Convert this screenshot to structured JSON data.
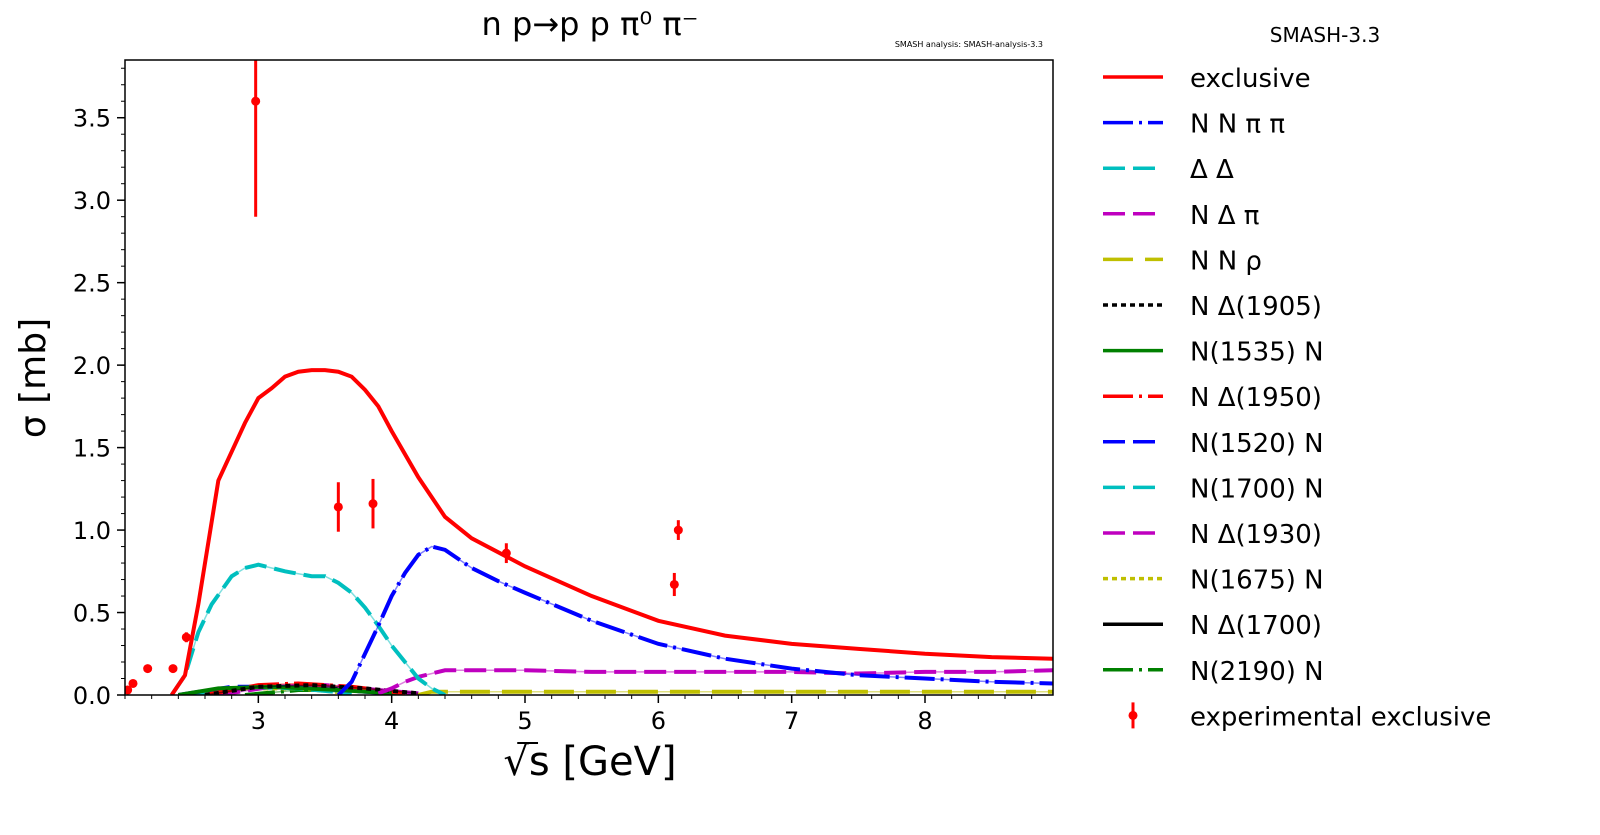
{
  "chart_data": {
    "type": "line",
    "title": "n p→p p π⁰ π⁻",
    "watermark": "SMASH analysis: SMASH-analysis-3.3",
    "legend_title": "SMASH-3.3",
    "legend_placement": "outside-right",
    "xlabel": "√s [GeV]",
    "xlabel_root": "√",
    "xlabel_s": "s",
    "xlabel_unit": "[GeV]",
    "ylabel": "σ [mb]",
    "xlim": [
      2.0,
      8.96
    ],
    "ylim": [
      0,
      3.85
    ],
    "xticks": [
      3,
      4,
      5,
      6,
      7,
      8
    ],
    "yticks": [
      "0.0",
      "0.5",
      "1.0",
      "1.5",
      "2.0",
      "2.5",
      "3.0",
      "3.5"
    ],
    "series": [
      {
        "name": "exclusive",
        "color": "#ff0000",
        "dash": "",
        "x": [
          2.35,
          2.45,
          2.55,
          2.7,
          2.9,
          3.0,
          3.1,
          3.2,
          3.3,
          3.4,
          3.5,
          3.6,
          3.7,
          3.8,
          3.9,
          4.0,
          4.2,
          4.4,
          4.6,
          5.0,
          5.5,
          6.0,
          6.5,
          7.0,
          7.5,
          8.0,
          8.5,
          8.96
        ],
        "y": [
          0,
          0.12,
          0.55,
          1.3,
          1.65,
          1.8,
          1.86,
          1.93,
          1.96,
          1.97,
          1.97,
          1.96,
          1.93,
          1.85,
          1.75,
          1.6,
          1.32,
          1.08,
          0.95,
          0.78,
          0.6,
          0.45,
          0.36,
          0.31,
          0.28,
          0.25,
          0.23,
          0.22
        ]
      },
      {
        "name": "N N π π",
        "color": "#0000ff",
        "dash": "30,6,3,6",
        "x": [
          3.6,
          3.7,
          3.8,
          3.9,
          4.0,
          4.1,
          4.2,
          4.3,
          4.4,
          4.6,
          4.8,
          5.0,
          5.5,
          6.0,
          6.5,
          7.0,
          7.5,
          8.0,
          8.5,
          8.96
        ],
        "y": [
          0,
          0.08,
          0.25,
          0.42,
          0.6,
          0.74,
          0.85,
          0.9,
          0.88,
          0.77,
          0.69,
          0.62,
          0.45,
          0.31,
          0.22,
          0.16,
          0.12,
          0.1,
          0.08,
          0.07
        ]
      },
      {
        "name": "Δ Δ",
        "color": "#00bfbf",
        "dash": "22,8",
        "x": [
          2.35,
          2.45,
          2.55,
          2.65,
          2.8,
          2.9,
          3.0,
          3.1,
          3.2,
          3.4,
          3.5,
          3.6,
          3.7,
          3.8,
          3.9,
          4.0,
          4.1,
          4.2,
          4.3,
          4.4
        ],
        "y": [
          0,
          0.12,
          0.38,
          0.55,
          0.72,
          0.77,
          0.79,
          0.77,
          0.75,
          0.72,
          0.72,
          0.68,
          0.62,
          0.53,
          0.42,
          0.3,
          0.2,
          0.1,
          0.04,
          0
        ]
      },
      {
        "name": "N Δ π",
        "color": "#bf00bf",
        "dash": "22,8",
        "x": [
          3.9,
          4.0,
          4.1,
          4.2,
          4.4,
          4.6,
          5.0,
          5.5,
          6.0,
          6.5,
          7.0,
          7.5,
          8.0,
          8.5,
          8.96
        ],
        "y": [
          0.01,
          0.04,
          0.08,
          0.11,
          0.15,
          0.15,
          0.15,
          0.14,
          0.14,
          0.14,
          0.14,
          0.13,
          0.14,
          0.14,
          0.15
        ]
      },
      {
        "name": "N N ρ",
        "color": "#bfbf00",
        "dash": "30,12",
        "x": [
          4.2,
          4.3,
          5,
          6,
          7,
          8,
          8.96
        ],
        "y": [
          0,
          0.02,
          0.02,
          0.02,
          0.02,
          0.02,
          0.02
        ]
      },
      {
        "name": "N Δ(1905)",
        "color": "#000000",
        "dash": "5,4",
        "x": [
          2.6,
          3.0,
          3.4,
          3.8,
          4.2
        ],
        "y": [
          0,
          0.05,
          0.06,
          0.04,
          0.01
        ]
      },
      {
        "name": "N(1535) N",
        "color": "#008000",
        "dash": "",
        "x": [
          2.4,
          2.7,
          3.1,
          3.6,
          4.0
        ],
        "y": [
          0,
          0.04,
          0.05,
          0.03,
          0.01
        ]
      },
      {
        "name": "N Δ(1950)",
        "color": "#ff0000",
        "dash": "30,6,3,6",
        "x": [
          2.6,
          3.0,
          3.3,
          3.7,
          4.1
        ],
        "y": [
          0,
          0.06,
          0.07,
          0.05,
          0.01
        ]
      },
      {
        "name": "N(1520) N",
        "color": "#0000ff",
        "dash": "22,8",
        "x": [
          2.4,
          2.8,
          3.2,
          3.6,
          4.0
        ],
        "y": [
          0,
          0.05,
          0.05,
          0.03,
          0.01
        ]
      },
      {
        "name": "N(1700) N",
        "color": "#00bfbf",
        "dash": "22,8",
        "x": [
          2.5,
          2.9,
          3.3,
          3.7
        ],
        "y": [
          0,
          0.05,
          0.04,
          0.01
        ]
      },
      {
        "name": "N Δ(1930)",
        "color": "#bf00bf",
        "dash": "22,8",
        "x": [
          2.7,
          3.1,
          3.5,
          3.9,
          4.2
        ],
        "y": [
          0,
          0.05,
          0.06,
          0.03,
          0.01
        ]
      },
      {
        "name": "N(1675) N",
        "color": "#bfbf00",
        "dash": "5,4",
        "x": [
          2.5,
          2.9,
          3.3,
          3.7
        ],
        "y": [
          0,
          0.04,
          0.04,
          0.01
        ]
      },
      {
        "name": "N Δ(1700)",
        "color": "#000000",
        "dash": "",
        "x": [
          2.5,
          2.9,
          3.3,
          3.7,
          4.0
        ],
        "y": [
          0,
          0.04,
          0.05,
          0.03,
          0.01
        ]
      },
      {
        "name": "N(2190) N",
        "color": "#008000",
        "dash": "30,6,3,6",
        "x": [
          2.9,
          3.3,
          3.7,
          4.1
        ],
        "y": [
          0,
          0.03,
          0.03,
          0.01
        ]
      }
    ],
    "experimental": {
      "name": "experimental exclusive",
      "color": "#ff0000",
      "x": [
        2.02,
        2.06,
        2.17,
        2.36,
        2.46,
        2.98,
        3.6,
        3.86,
        4.86,
        6.12,
        6.15
      ],
      "y": [
        0.03,
        0.07,
        0.16,
        0.16,
        0.35,
        3.6,
        1.14,
        1.16,
        0.86,
        0.67,
        1.0
      ],
      "err": [
        0.01,
        0.01,
        0.01,
        0.01,
        0.03,
        0.7,
        0.15,
        0.15,
        0.06,
        0.07,
        0.06
      ]
    }
  }
}
